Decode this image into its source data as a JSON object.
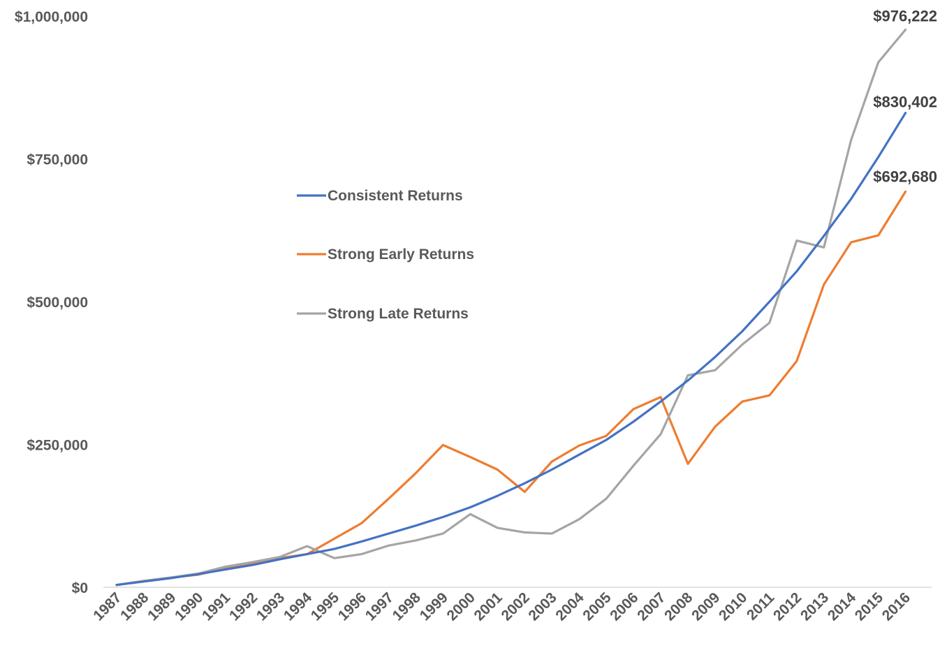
{
  "chart_data": {
    "type": "line",
    "title": "",
    "xlabel": "",
    "ylabel": "",
    "ylim": [
      0,
      1000000
    ],
    "yticks": [
      0,
      250000,
      500000,
      750000,
      1000000
    ],
    "ytick_labels": [
      "$0",
      "$250,000",
      "$500,000",
      "$750,000",
      "$1,000,000"
    ],
    "grid": false,
    "legend_position": "center-left",
    "x": [
      "1987",
      "1988",
      "1989",
      "1990",
      "1991",
      "1992",
      "1993",
      "1994",
      "1995",
      "1996",
      "1997",
      "1998",
      "1999",
      "2000",
      "2001",
      "2002",
      "2003",
      "2004",
      "2005",
      "2006",
      "2007",
      "2008",
      "2009",
      "2010",
      "2011",
      "2012",
      "2013",
      "2014",
      "2015",
      "2016"
    ],
    "series": [
      {
        "name": "Consistent Returns",
        "color": "#4472C4",
        "values": [
          4000,
          10000,
          16000,
          23000,
          31000,
          39000,
          49000,
          58000,
          67000,
          80000,
          94000,
          108000,
          123000,
          140000,
          160000,
          182000,
          206000,
          232000,
          258000,
          290000,
          325000,
          362000,
          403000,
          448000,
          500000,
          553000,
          615000,
          680000,
          753000,
          830402
        ]
      },
      {
        "name": "Strong Early Returns",
        "color": "#ED7D31",
        "values": [
          4000,
          11000,
          17000,
          22000,
          33000,
          41000,
          51000,
          58000,
          85000,
          112000,
          155000,
          200000,
          249000,
          228000,
          206000,
          167000,
          220000,
          248000,
          265000,
          312000,
          333000,
          216000,
          281000,
          325000,
          336000,
          396000,
          530000,
          604000,
          616000,
          692680
        ]
      },
      {
        "name": "Strong Late Returns",
        "color": "#A5A5A5",
        "values": [
          4000,
          11000,
          17000,
          24000,
          36000,
          44000,
          53000,
          72000,
          51000,
          58000,
          73000,
          82000,
          94000,
          128000,
          104000,
          96000,
          94000,
          119000,
          155000,
          213000,
          268000,
          371000,
          380000,
          425000,
          463000,
          607000,
          595000,
          783000,
          919000,
          976222
        ]
      }
    ],
    "annotations": [
      {
        "series": "Strong Late Returns",
        "text": "$976,222"
      },
      {
        "series": "Consistent Returns",
        "text": "$830,402"
      },
      {
        "series": "Strong Early Returns",
        "text": "$692,680"
      }
    ]
  }
}
